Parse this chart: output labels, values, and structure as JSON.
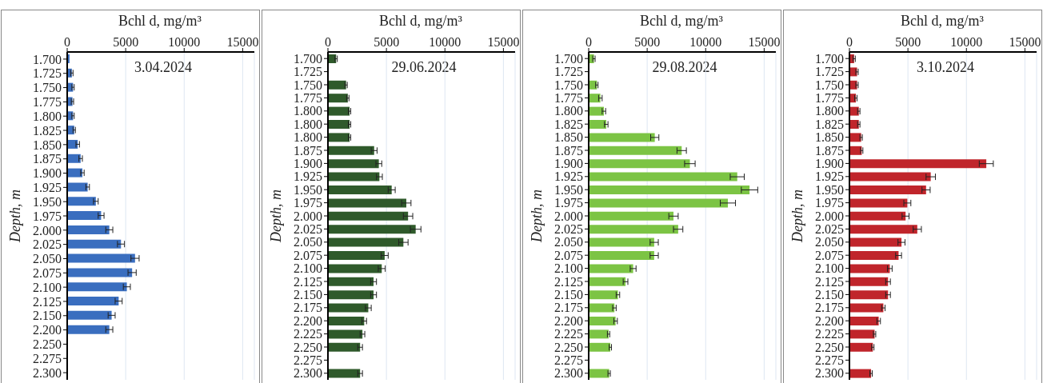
{
  "chart_data": [
    {
      "type": "bar",
      "orientation": "horizontal",
      "title": "3.04.2024",
      "xlabel": "Bchl d, mg/m³",
      "ylabel": "Depth, m",
      "color": "#3a6ebf",
      "xlim": [
        0,
        16000
      ],
      "xticks": [
        0,
        5000,
        10000,
        15000
      ],
      "grid": "x",
      "categories": [
        "1.700",
        "1.725",
        "1.750",
        "1.775",
        "1.800",
        "1.825",
        "1.850",
        "1.875",
        "1.900",
        "1.925",
        "1.950",
        "1.975",
        "2.000",
        "2.025",
        "2.050",
        "2.075",
        "2.100",
        "2.125",
        "2.150",
        "2.200",
        "2.250",
        "2.275",
        "2.300"
      ],
      "values": [
        200,
        400,
        500,
        450,
        500,
        600,
        900,
        1150,
        1300,
        1750,
        2450,
        2900,
        3600,
        4600,
        5800,
        5550,
        5100,
        4400,
        3800,
        3600,
        null,
        null,
        null
      ],
      "errors": [
        null,
        100,
        100,
        100,
        100,
        100,
        150,
        150,
        150,
        150,
        200,
        250,
        300,
        300,
        350,
        350,
        300,
        300,
        300,
        300,
        null,
        null,
        null
      ]
    },
    {
      "type": "bar",
      "orientation": "horizontal",
      "title": "29.06.2024",
      "xlabel": "Bchl d, mg/m³",
      "ylabel": "Depth, m",
      "color": "#2f5a2b",
      "xlim": [
        0,
        16000
      ],
      "xticks": [
        0,
        5000,
        10000,
        15000
      ],
      "grid": "x",
      "categories": [
        "1.700",
        "1.725",
        "1.750",
        "1.775",
        "1.800",
        "1.800",
        "1.800",
        "1.875",
        "1.900",
        "1.925",
        "1.950",
        "1.975",
        "2.000",
        "2.025",
        "2.050",
        "2.075",
        "2.100",
        "2.125",
        "2.150",
        "2.175",
        "2.200",
        "2.225",
        "2.250",
        "2.275",
        "2.300"
      ],
      "values": [
        700,
        null,
        1550,
        1700,
        1850,
        1850,
        1850,
        3950,
        4350,
        4400,
        5450,
        6700,
        6850,
        7500,
        6450,
        4850,
        4600,
        3900,
        3900,
        3450,
        3100,
        2950,
        2750,
        null,
        2750
      ],
      "errors": [
        100,
        null,
        100,
        100,
        100,
        100,
        100,
        250,
        250,
        250,
        300,
        400,
        400,
        450,
        400,
        300,
        300,
        250,
        250,
        250,
        200,
        200,
        200,
        null,
        200
      ]
    },
    {
      "type": "bar",
      "orientation": "horizontal",
      "title": "29.08.2024",
      "xlabel": "Bchl d, mg/m³",
      "ylabel": "Depth, m",
      "color": "#7cc444",
      "xlim": [
        0,
        16000
      ],
      "xticks": [
        0,
        5000,
        10000,
        15000
      ],
      "grid": "x",
      "categories": [
        "1.700",
        "1.725",
        "1.750",
        "1.775",
        "1.800",
        "1.825",
        "1.850",
        "1.875",
        "1.900",
        "1.925",
        "1.950",
        "1.975",
        "2.000",
        "2.025",
        "2.050",
        "2.075",
        "2.100",
        "2.125",
        "2.150",
        "2.175",
        "2.200",
        "2.225",
        "2.250",
        "2.275",
        "2.300"
      ],
      "values": [
        450,
        null,
        700,
        1000,
        1300,
        1500,
        5650,
        7950,
        8650,
        12700,
        13750,
        11900,
        7250,
        7650,
        5600,
        5600,
        3800,
        3150,
        2500,
        2200,
        2300,
        1700,
        1850,
        null,
        1750
      ],
      "errors": [
        100,
        null,
        100,
        150,
        150,
        150,
        350,
        400,
        450,
        600,
        700,
        650,
        400,
        400,
        350,
        350,
        250,
        200,
        150,
        150,
        150,
        100,
        100,
        null,
        100
      ]
    },
    {
      "type": "bar",
      "orientation": "horizontal",
      "title": "3.10.2024",
      "xlabel": "Bchl d, mg/m³",
      "ylabel": "Depth, m",
      "color": "#c0252b",
      "xlim": [
        0,
        16000
      ],
      "xticks": [
        0,
        5000,
        10000,
        15000
      ],
      "grid": "x",
      "categories": [
        "1.700",
        "1.725",
        "1.750",
        "1.775",
        "1.800",
        "1.825",
        "1.850",
        "1.875",
        "1.900",
        "1.925",
        "1.950",
        "1.975",
        "2.000",
        "2.025",
        "2.050",
        "2.075",
        "2.100",
        "2.125",
        "2.150",
        "2.175",
        "2.200",
        "2.225",
        "2.250",
        "2.275",
        "2.300"
      ],
      "values": [
        400,
        650,
        650,
        550,
        800,
        800,
        1000,
        1050,
        11700,
        6950,
        6550,
        4950,
        4800,
        5800,
        4450,
        4200,
        3450,
        3300,
        3300,
        2900,
        2500,
        2150,
        2000,
        null,
        1850
      ],
      "errors": [
        100,
        100,
        100,
        100,
        100,
        100,
        100,
        100,
        600,
        400,
        350,
        300,
        300,
        350,
        300,
        250,
        200,
        200,
        200,
        150,
        150,
        100,
        100,
        null,
        100
      ]
    }
  ]
}
